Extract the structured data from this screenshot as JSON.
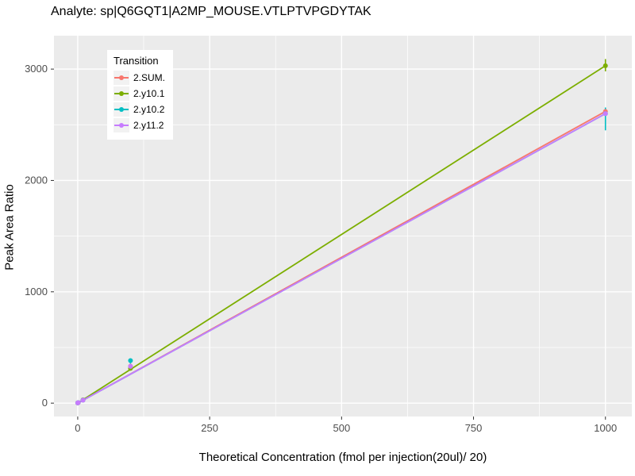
{
  "chart_data": {
    "type": "scatter",
    "title": "Analyte: sp|Q6GQT1|A2MP_MOUSE.VTLPTVPGDYTAK",
    "xlabel": "Theoretical Concentration (fmol per injection(20ul)/ 20)",
    "ylabel": "Peak Area Ratio",
    "legend_title": "Transition",
    "legend_position": "top-left-inside",
    "grid": true,
    "panel_bg": "#EBEBEB",
    "grid_color": "#FFFFFF",
    "axis_text_color": "#4D4D4D",
    "xlim": [
      -45,
      1050
    ],
    "ylim": [
      -120,
      3300
    ],
    "x_ticks": [
      0,
      250,
      500,
      750,
      1000
    ],
    "y_ticks": [
      0,
      1000,
      2000,
      3000
    ],
    "x_minor_ticks": [
      125,
      375,
      625,
      875
    ],
    "y_minor_ticks": [
      500,
      1500,
      2500
    ],
    "series": [
      {
        "name": "2.SUM.",
        "color": "#F8766D",
        "x": [
          0,
          1,
          10,
          100,
          1000
        ],
        "y": [
          2,
          5,
          27,
          332,
          2620
        ],
        "fit_line": {
          "x": [
            0,
            1000
          ],
          "y": [
            0,
            2620
          ]
        }
      },
      {
        "name": "2.y10.1",
        "color": "#7CAE00",
        "x": [
          0,
          1,
          10,
          100,
          1000
        ],
        "y": [
          2,
          5,
          30,
          312,
          3030
        ],
        "fit_line": {
          "x": [
            0,
            1000
          ],
          "y": [
            0,
            3030
          ]
        },
        "error_bars": [
          {
            "x": 1000,
            "low": 2980,
            "high": 3090
          }
        ]
      },
      {
        "name": "2.y10.2",
        "color": "#00BFC4",
        "x": [
          0,
          1,
          10,
          100,
          1000
        ],
        "y": [
          2,
          5,
          27,
          382,
          2600
        ],
        "fit_line": {
          "x": [
            0,
            1000
          ],
          "y": [
            0,
            2600
          ]
        },
        "error_bars": [
          {
            "x": 100,
            "low": 355,
            "high": 400
          },
          {
            "x": 1000,
            "low": 2450,
            "high": 2655
          }
        ]
      },
      {
        "name": "2.y11.2",
        "color": "#C77CFF",
        "x": [
          0,
          1,
          10,
          100,
          1000
        ],
        "y": [
          2,
          5,
          27,
          330,
          2600
        ],
        "fit_line": {
          "x": [
            0,
            1000
          ],
          "y": [
            0,
            2600
          ]
        }
      }
    ]
  }
}
